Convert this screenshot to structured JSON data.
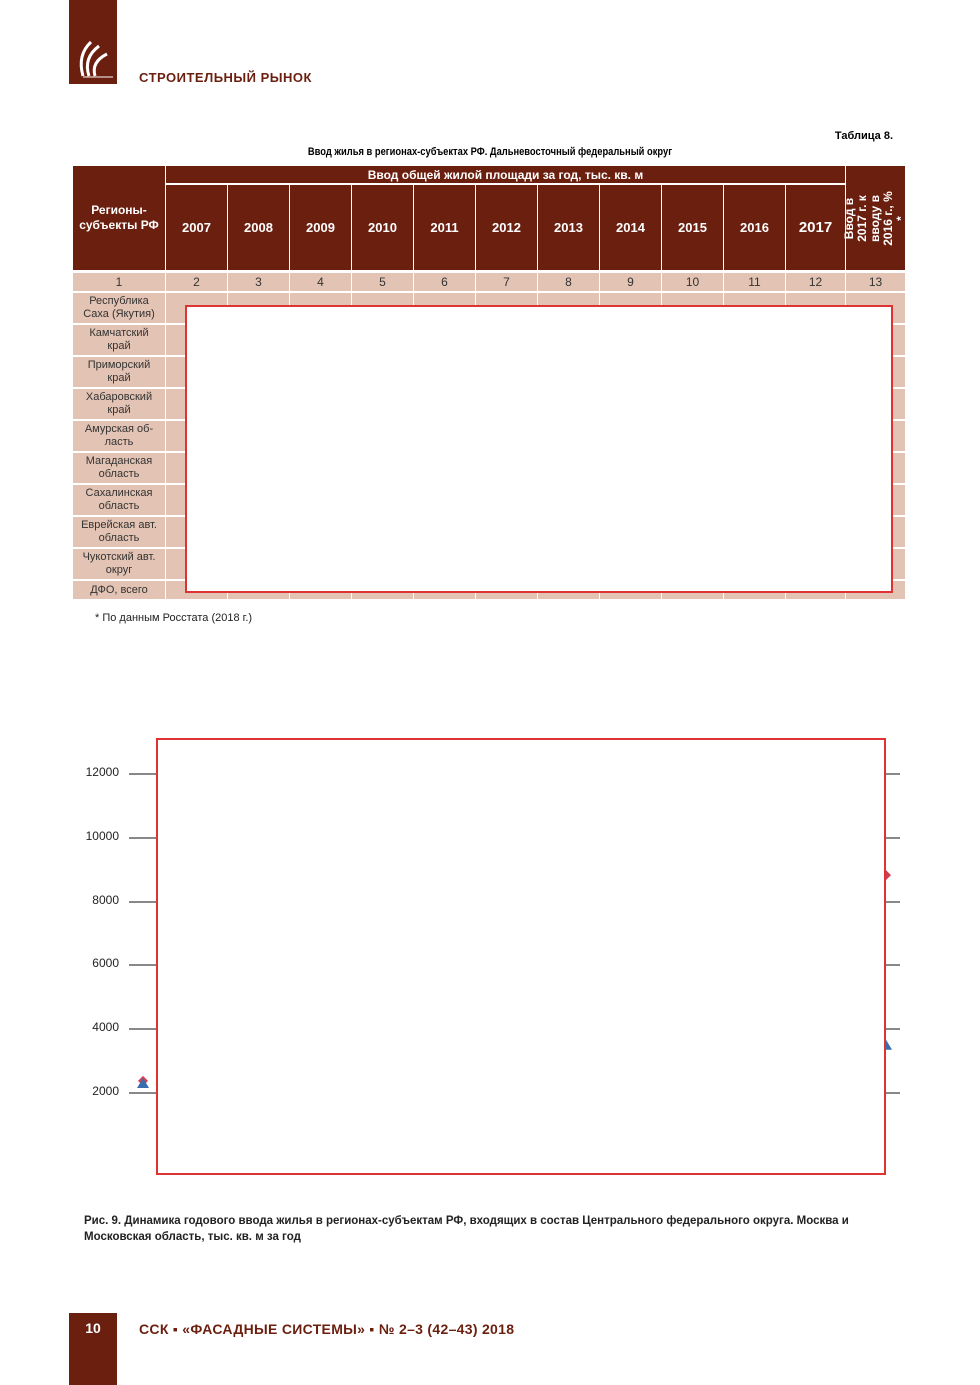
{
  "header": {
    "section": "СТРОИТЕЛЬНЫЙ РЫНОК",
    "brand_color": "#6b1f0f"
  },
  "table": {
    "number": "Таблица 8.",
    "title": "Ввод жилья в регионах-субъектах РФ. Дальневосточный федеральный округ",
    "col_region": "Регионы-субъекты РФ",
    "col_group": "Ввод общей жилой площади за год, тыс. кв. м",
    "years": [
      "2007",
      "2008",
      "2009",
      "2010",
      "2011",
      "2012",
      "2013",
      "2014",
      "2015",
      "2016",
      "2017"
    ],
    "col_ratio": "Ввод в 2017 г. к вводу в 2016 г., % *",
    "col_numbers": [
      "1",
      "2",
      "3",
      "4",
      "5",
      "6",
      "7",
      "8",
      "9",
      "10",
      "11",
      "12",
      "13"
    ],
    "regions": [
      "Республика Саха (Якутия)",
      "Камчатский край",
      "Приморский край",
      "Хабаровский край",
      "Амурская об-ласть",
      "Магаданская область",
      "Сахалинская область",
      "Еврейская авт. область",
      "Чукотский авт. округ",
      "ДФО, всего"
    ],
    "note": "* По данным Росстата (2018 г.)"
  },
  "chart_data": {
    "type": "line",
    "title": "",
    "yticks": [
      "12000",
      "10000",
      "8000",
      "6000",
      "4000",
      "2000"
    ],
    "ylim": [
      0,
      13000
    ],
    "series": [
      {
        "color": "#d04050",
        "marker": "diamond",
        "visible_values": [
          2350,
          8800
        ]
      },
      {
        "color": "#3a6db0",
        "marker": "triangle",
        "visible_values": [
          2250,
          3450
        ]
      }
    ]
  },
  "caption": "Рис. 9. Динамика годового ввода жилья в регионах-субъектам РФ, входящих в состав Центрального федерального округа. Москва и Московская область, тыс. кв. м за год",
  "footer": {
    "page": "10",
    "journal": "ССК ▪ «ФАСАДНЫЕ СИСТЕМЫ» ▪ № 2–3 (42–43) 2018"
  }
}
